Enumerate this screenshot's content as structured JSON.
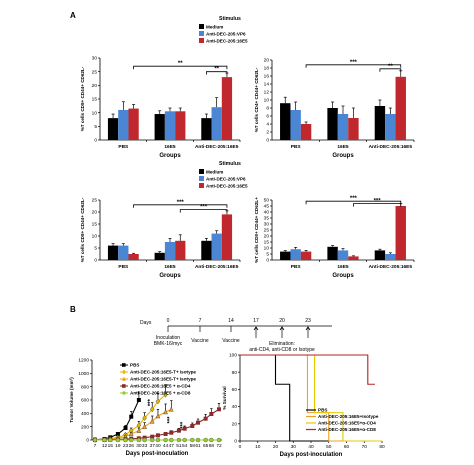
{
  "panel_labels": [
    "A",
    "B"
  ],
  "legend_A": {
    "title": "Stimulus",
    "items": [
      {
        "label": "Medium",
        "color": "#000000"
      },
      {
        "label": "Anti-DEC-205:VP6",
        "color": "#4a86d4"
      },
      {
        "label": "Anti-DEC-205:16E5",
        "color": "#c0282d"
      }
    ]
  },
  "chart_data": [
    {
      "type": "bar",
      "ylabel": "%T cells CD8+ CD44+ CD62L-",
      "xlabel": "Groups",
      "categories": [
        "PBS",
        "16E5",
        "Anti-DEC-205:16E5"
      ],
      "ylim": [
        0,
        30
      ],
      "yticks": [
        0,
        5,
        10,
        15,
        20,
        25,
        30
      ],
      "series": [
        {
          "name": "Medium",
          "color": "#000000",
          "values": [
            8,
            9.5,
            8
          ],
          "errors": [
            1.5,
            1.2,
            1.5
          ]
        },
        {
          "name": "Anti-DEC-205:VP6",
          "color": "#4a86d4",
          "values": [
            11,
            10.5,
            12
          ],
          "errors": [
            3,
            1.2,
            3.5
          ]
        },
        {
          "name": "Anti-DEC-205:16E5",
          "color": "#c0282d",
          "values": [
            11.5,
            10.5,
            23
          ],
          "errors": [
            1.5,
            1.2,
            1.5
          ]
        }
      ],
      "annotations": [
        {
          "text": "**",
          "from": [
            0,
            2
          ],
          "to": [
            2,
            2
          ],
          "level": 27
        },
        {
          "text": "**",
          "from": [
            2,
            0
          ],
          "to": [
            2,
            2
          ],
          "level": 25
        }
      ]
    },
    {
      "type": "bar",
      "ylabel": "%T cells CD4+ CD44+ CD62L-",
      "xlabel": "Groups",
      "categories": [
        "PBS",
        "16E5",
        "Anti-DEC-205:16E5"
      ],
      "ylim": [
        0,
        20
      ],
      "yticks": [
        0,
        2,
        4,
        6,
        8,
        10,
        12,
        14,
        16,
        18,
        20
      ],
      "series": [
        {
          "name": "Medium",
          "color": "#000000",
          "values": [
            9.2,
            8,
            8.5
          ],
          "errors": [
            1.5,
            1.5,
            1.5
          ]
        },
        {
          "name": "Anti-DEC-205:VP6",
          "color": "#4a86d4",
          "values": [
            7.5,
            6.5,
            6.5
          ],
          "errors": [
            2,
            2,
            1.5
          ]
        },
        {
          "name": "Anti-DEC-205:16E5",
          "color": "#c0282d",
          "values": [
            4,
            5.5,
            15.8
          ],
          "errors": [
            0.5,
            2.5,
            1.5
          ]
        }
      ],
      "annotations": [
        {
          "text": "***",
          "from": [
            0,
            2
          ],
          "to": [
            2,
            2
          ],
          "level": 18.8
        },
        {
          "text": "**",
          "from": [
            2,
            0
          ],
          "to": [
            2,
            2
          ],
          "level": 17.8
        }
      ]
    },
    {
      "type": "bar",
      "ylabel": "%T cells CD8+ CD44+ CD62L-",
      "xlabel": "Groups",
      "categories": [
        "PBS",
        "16E5",
        "Anti-DEC-205:16E5"
      ],
      "ylim": [
        0,
        25
      ],
      "yticks": [
        0,
        5,
        10,
        15,
        20,
        25
      ],
      "series": [
        {
          "name": "Medium",
          "color": "#000000",
          "values": [
            6,
            3,
            8
          ],
          "errors": [
            0.8,
            0.5,
            1
          ]
        },
        {
          "name": "Anti-DEC-205:VP6",
          "color": "#4a86d4",
          "values": [
            6,
            7.5,
            11
          ],
          "errors": [
            0.8,
            1.5,
            1.2
          ]
        },
        {
          "name": "Anti-DEC-205:16E5",
          "color": "#c0282d",
          "values": [
            2.5,
            8,
            19
          ],
          "errors": [
            0.3,
            2.5,
            1.5
          ]
        }
      ],
      "annotations": [
        {
          "text": "***",
          "from": [
            0,
            2
          ],
          "to": [
            2,
            2
          ],
          "level": 23
        },
        {
          "text": "***",
          "from": [
            1,
            2
          ],
          "to": [
            2,
            2
          ],
          "level": 21
        }
      ]
    },
    {
      "type": "bar",
      "ylabel": "%T cells CD8+ CD44+ CD62L+",
      "xlabel": "Groups",
      "categories": [
        "PBS",
        "16E5",
        "Anti-DEC-205:16E5"
      ],
      "ylim": [
        0,
        50
      ],
      "yticks": [
        0,
        5,
        10,
        15,
        20,
        25,
        30,
        35,
        40,
        45,
        50
      ],
      "series": [
        {
          "name": "Medium",
          "color": "#000000",
          "values": [
            7,
            11,
            8
          ],
          "errors": [
            0.8,
            1,
            1
          ]
        },
        {
          "name": "Anti-DEC-205:VP6",
          "color": "#4a86d4",
          "values": [
            9,
            8,
            5
          ],
          "errors": [
            1.5,
            1.5,
            1
          ]
        },
        {
          "name": "Anti-DEC-205:16E5",
          "color": "#c0282d",
          "values": [
            7,
            3,
            45
          ],
          "errors": [
            1,
            0.5,
            2
          ]
        }
      ],
      "annotations": [
        {
          "text": "***",
          "from": [
            0,
            2
          ],
          "to": [
            2,
            2
          ],
          "level": 49
        },
        {
          "text": "***",
          "from": [
            1,
            2
          ],
          "to": [
            2,
            2
          ],
          "level": 47
        }
      ]
    },
    {
      "type": "line",
      "ylabel": "Tumor Volume (mm³)",
      "xlabel": "Days post-inoculation",
      "x": [
        7,
        12,
        15,
        19,
        23,
        26,
        30,
        33,
        37,
        40,
        44,
        47,
        51,
        54,
        58,
        61,
        65,
        68,
        72
      ],
      "xticks": [
        7,
        12,
        15,
        19,
        23,
        26,
        30,
        33,
        37,
        40,
        44,
        47,
        51,
        54,
        58,
        61,
        65,
        68,
        72
      ],
      "ylim": [
        0,
        1200
      ],
      "yticks": [
        0,
        200,
        400,
        600,
        800,
        1000,
        1200
      ],
      "series": [
        {
          "name": "PBS",
          "color": "#000000",
          "marker": "square",
          "x": [
            7,
            12,
            15,
            19,
            23,
            26,
            30
          ],
          "y": [
            5,
            15,
            40,
            90,
            180,
            350,
            600
          ],
          "err": [
            0,
            0,
            0,
            20,
            40,
            80,
            120
          ]
        },
        {
          "name": "Anti-DEC-205:16E5-T+ Isotype",
          "color": "#e6b800",
          "marker": "diamond",
          "x": [
            7,
            12,
            15,
            19,
            23,
            26,
            30,
            33,
            37,
            40,
            44
          ],
          "y": [
            3,
            8,
            20,
            40,
            80,
            140,
            220,
            330,
            460,
            580,
            680
          ],
          "err": [
            0,
            0,
            5,
            10,
            20,
            40,
            60,
            80,
            100,
            120,
            150
          ]
        },
        {
          "name": "Anti-DEC-205:16E5-T+ Isotype",
          "color": "#f0a020",
          "marker": "triangle",
          "x": [
            7,
            12,
            15,
            19,
            23,
            26,
            30,
            33,
            37,
            40,
            44,
            47
          ],
          "y": [
            2,
            5,
            12,
            25,
            50,
            90,
            140,
            200,
            280,
            360,
            420,
            460
          ],
          "err": [
            0,
            0,
            0,
            5,
            10,
            20,
            40,
            60,
            80,
            100,
            120,
            130
          ]
        },
        {
          "name": "Anti-DEC-205:16E5 + α-CD4",
          "color": "#8b2a2a",
          "marker": "square",
          "x": [
            7,
            12,
            15,
            19,
            23,
            26,
            30,
            33,
            37,
            40,
            44,
            47,
            51,
            54,
            58,
            61,
            65,
            68,
            72
          ],
          "y": [
            1,
            3,
            5,
            8,
            12,
            18,
            25,
            35,
            50,
            70,
            90,
            110,
            140,
            170,
            210,
            260,
            320,
            390,
            460
          ],
          "err": [
            0,
            0,
            0,
            0,
            0,
            5,
            5,
            10,
            15,
            20,
            25,
            30,
            35,
            40,
            45,
            55,
            65,
            80,
            90
          ]
        },
        {
          "name": "Anti-DEC-205:16E5 + α-CD8",
          "color": "#9acd32",
          "marker": "circle",
          "x": [
            7,
            12,
            15,
            19,
            23,
            26,
            30,
            33,
            37,
            40,
            44,
            47,
            51,
            54,
            58,
            61,
            65,
            68,
            72
          ],
          "y": [
            0,
            0,
            0,
            0,
            0,
            0,
            0,
            0,
            0,
            0,
            0,
            0,
            0,
            0,
            0,
            0,
            0,
            0,
            0
          ],
          "err": []
        }
      ],
      "legend": [
        {
          "label": "PBS",
          "color": "#000000",
          "marker": "square"
        },
        {
          "label": "Anti-DEC-205:16E5-T+ Isotype",
          "color": "#e6b800",
          "marker": "diamond"
        },
        {
          "label": "Anti-DEC-205:16E5-T+ Isotype",
          "color": "#f0a020",
          "marker": "triangle"
        },
        {
          "label": "Anti-DEC-205:16E5 + α-CD4",
          "color": "#8b2a2a",
          "marker": "square"
        },
        {
          "label": "Anti-DEC-205:16E5 + α-CD8",
          "color": "#9acd32",
          "marker": "circle"
        }
      ],
      "annotations": [
        "***",
        "***",
        "***"
      ]
    },
    {
      "type": "line",
      "ylabel": "% Survival",
      "xlabel": "Days post-inoculation",
      "xticks": [
        0,
        10,
        20,
        30,
        40,
        50,
        60,
        70,
        80
      ],
      "xlim": [
        0,
        80
      ],
      "ylim": [
        0,
        100
      ],
      "yticks": [
        0,
        20,
        40,
        60,
        80,
        100
      ],
      "series": [
        {
          "name": "PBS",
          "color": "#000000",
          "steps": [
            [
              0,
              100
            ],
            [
              20,
              100
            ],
            [
              20,
              66
            ],
            [
              28,
              66
            ],
            [
              28,
              0
            ],
            [
              80,
              0
            ]
          ]
        },
        {
          "name": "Anti-DEC-205:16E5+Isotype",
          "color": "#f0a020",
          "steps": [
            [
              0,
              100
            ],
            [
              38,
              100
            ],
            [
              38,
              33
            ],
            [
              50,
              33
            ],
            [
              50,
              0
            ],
            [
              80,
              0
            ]
          ]
        },
        {
          "name": "Anti-DEC-205:16E5+α-CD4",
          "color": "#e6c800",
          "steps": [
            [
              0,
              100
            ],
            [
              42,
              100
            ],
            [
              42,
              33
            ],
            [
              58,
              33
            ],
            [
              58,
              0
            ],
            [
              80,
              0
            ]
          ]
        },
        {
          "name": "Anti-DEC-205:16E5+α-CD8",
          "color": "#b22222",
          "steps": [
            [
              0,
              100
            ],
            [
              72,
              100
            ],
            [
              72,
              66
            ],
            [
              76,
              66
            ]
          ]
        }
      ],
      "legend": [
        {
          "label": "PBS",
          "color": "#000000"
        },
        {
          "label": "Anti-DEC-205:16E5+Isotype",
          "color": "#f0a020"
        },
        {
          "label": "Anti-DEC-205:16E5+α-CD4",
          "color": "#e6c800"
        },
        {
          "label": "Anti-DEC-205:16E5+α-CD8",
          "color": "#b22222"
        }
      ]
    }
  ],
  "timeline": {
    "days_label": "Days",
    "days": [
      "0",
      "7",
      "14",
      "17",
      "20",
      "23"
    ],
    "events": [
      {
        "label": "Inoculation",
        "sub": "BMK-16/myc"
      },
      {
        "label": "Vaccine",
        "sub": ""
      },
      {
        "label": "Vaccine",
        "sub": ""
      }
    ],
    "elimination_label": "Elimination:",
    "elimination_sub": "anti-CD4, anti-CD8 or Isotype"
  }
}
